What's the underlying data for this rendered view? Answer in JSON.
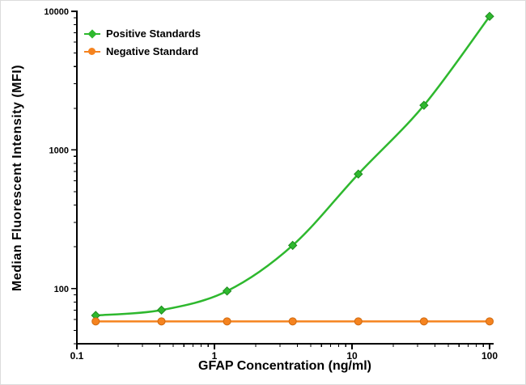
{
  "chart_data": {
    "type": "line",
    "title": "",
    "xlabel": "GFAP Concentration (ng/ml)",
    "ylabel": "Median  Fluorescent  Intensity  (MFI)",
    "x_scale": "log",
    "y_scale": "log",
    "grid": false,
    "legend_position": "top-left",
    "x_domain": [
      0.1,
      107
    ],
    "y_domain": [
      40,
      10000
    ],
    "x_ticks": [
      0.1,
      1,
      10,
      100
    ],
    "y_ticks": [
      100,
      1000,
      10000
    ],
    "axis_color": "#000000",
    "background_color": "#ffffff",
    "x": [
      0.137,
      0.412,
      1.235,
      3.704,
      11.11,
      33.33,
      100
    ],
    "series": [
      {
        "name": "Positive Standards",
        "color": "#2eb82e",
        "edge_color": "#1e8a1e",
        "marker": "diamond",
        "values": [
          64,
          70,
          96,
          205,
          670,
          2100,
          9200
        ]
      },
      {
        "name": "Negative Standard",
        "color": "#f5831f",
        "edge_color": "#d06a10",
        "marker": "circle",
        "values": [
          58,
          58,
          58,
          58,
          58,
          58,
          58
        ]
      }
    ]
  }
}
